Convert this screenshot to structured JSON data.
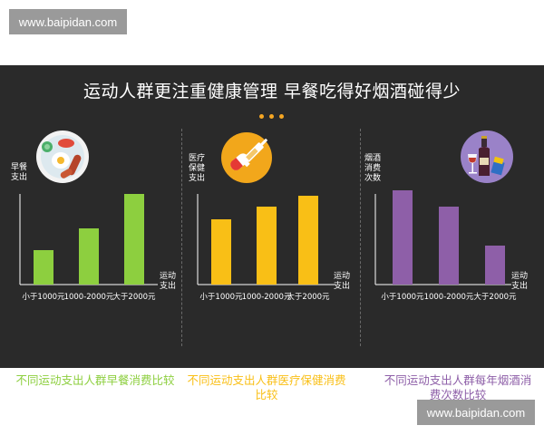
{
  "watermark": {
    "top": "www.baipidan.com",
    "bottom": "www.baipidan.com"
  },
  "header": {
    "title": "运动人群更注重健康管理  早餐吃得好烟酒碰得少"
  },
  "colors": {
    "panel_bg": "#2a2a2a",
    "accent_dots": "#f5a623",
    "green": "#8dcf3f",
    "yellow": "#f9bf16",
    "purple": "#8e5fa8"
  },
  "chart_data": [
    {
      "type": "bar",
      "categories": [
        "小于1000元",
        "1000-2000元",
        "大于2000元"
      ],
      "values": [
        38,
        62,
        100
      ],
      "ylabel": "早餐支出",
      "xlabel": "运动支出",
      "title": "不同运动支出人群早餐消费比较",
      "color": "#8dcf3f",
      "icon": "breakfast-plate-icon"
    },
    {
      "type": "bar",
      "categories": [
        "小于1000元",
        "1000-2000元",
        "大于2000元"
      ],
      "values": [
        72,
        86,
        98
      ],
      "ylabel": "医疗保健支出",
      "xlabel": "运动支出",
      "title": "不同运动支出人群医疗保健消费比较",
      "color": "#f9bf16",
      "icon": "medicine-pill-syringe-icon"
    },
    {
      "type": "bar",
      "categories": [
        "小于1000元",
        "1000-2000元",
        "大于2000元"
      ],
      "values": [
        104,
        86,
        43
      ],
      "ylabel": "烟酒消费次数",
      "xlabel": "运动支出",
      "title": "不同运动支出人群每年烟酒消费次数比较",
      "color": "#8e5fa8",
      "icon": "wine-bottle-icon"
    }
  ]
}
